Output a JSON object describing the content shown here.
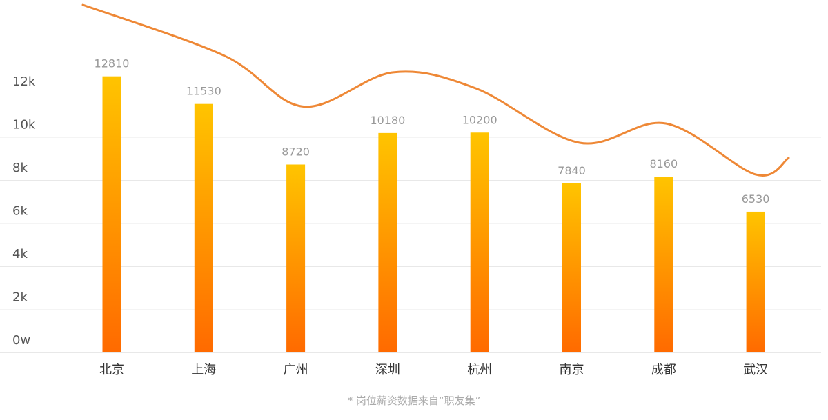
{
  "chart_data": {
    "type": "bar",
    "categories": [
      "北京",
      "上海",
      "广州",
      "深圳",
      "杭州",
      "南京",
      "成都",
      "武汉"
    ],
    "values": [
      12810,
      11530,
      8720,
      10180,
      10200,
      7840,
      8160,
      6530
    ],
    "value_labels": [
      "12810",
      "11530",
      "8720",
      "10180",
      "10200",
      "7840",
      "8160",
      "6530"
    ],
    "y_ticks": [
      {
        "value": 0,
        "label": "0w"
      },
      {
        "value": 2000,
        "label": "2k"
      },
      {
        "value": 4000,
        "label": "4k"
      },
      {
        "value": 6000,
        "label": "6k"
      },
      {
        "value": 8000,
        "label": "8k"
      },
      {
        "value": 10000,
        "label": "10k"
      },
      {
        "value": 12000,
        "label": "12k"
      }
    ],
    "ylim": [
      0,
      12000
    ],
    "grid": true,
    "trend_line": true,
    "colors": {
      "bar_top": "#ffc400",
      "bar_bottom": "#ff6a00",
      "trend_line": "#ee8836",
      "grid": "#e8e8e8"
    }
  },
  "footnote": "*  岗位薪资数据来自“职友集”"
}
